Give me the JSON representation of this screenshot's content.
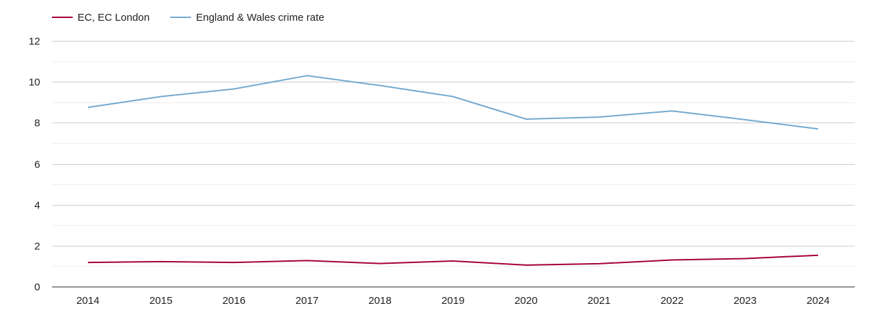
{
  "legend": {
    "items": [
      {
        "label": "EC, EC London",
        "color": "#a50034"
      },
      {
        "label": "England & Wales crime rate",
        "color": "#74a9cf"
      }
    ]
  },
  "chart_data": {
    "type": "line",
    "title": "",
    "xlabel": "",
    "ylabel": "",
    "categories": [
      "2014",
      "2015",
      "2016",
      "2017",
      "2018",
      "2019",
      "2020",
      "2021",
      "2022",
      "2023",
      "2024"
    ],
    "ylim": [
      0,
      12
    ],
    "yticks": [
      0,
      2,
      4,
      6,
      8,
      10,
      12
    ],
    "grid": true,
    "legend_position": "top-left",
    "series": [
      {
        "name": "EC, EC London",
        "color": "#a50034",
        "values": [
          1.18,
          1.22,
          1.18,
          1.27,
          1.13,
          1.25,
          1.05,
          1.12,
          1.3,
          1.37,
          1.53
        ]
      },
      {
        "name": "England & Wales crime rate",
        "color": "#74a9cf",
        "values": [
          8.75,
          9.28,
          9.65,
          10.3,
          9.82,
          9.28,
          8.18,
          8.28,
          8.58,
          8.15,
          7.7
        ]
      }
    ]
  }
}
